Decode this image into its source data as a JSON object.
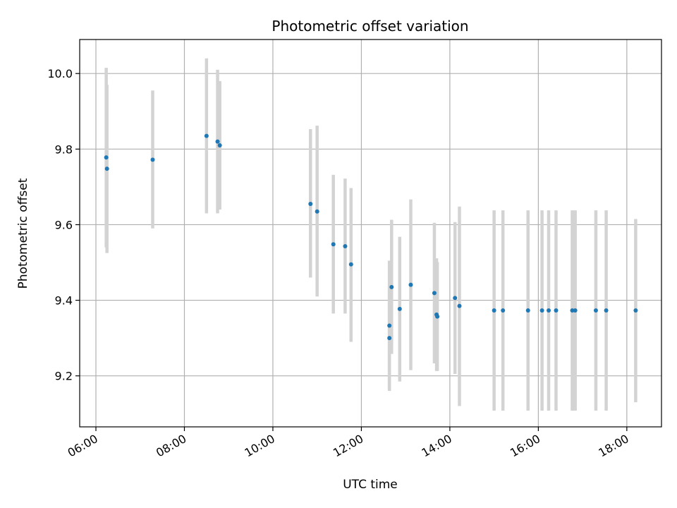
{
  "chart_data": {
    "type": "scatter",
    "title": "Photometric offset variation",
    "xlabel": "UTC time",
    "ylabel": "Photometric offset",
    "xlim": [
      "05:38",
      "18:47"
    ],
    "ylim": [
      9.065,
      10.09
    ],
    "x_ticks": [
      "06:00",
      "08:00",
      "10:00",
      "12:00",
      "14:00",
      "16:00",
      "18:00"
    ],
    "y_ticks": [
      "9.2",
      "9.4",
      "9.6",
      "9.8",
      "10.0"
    ],
    "grid": true,
    "marker_color": "#1f77b4",
    "errorbar_color": "#d3d3d3",
    "series": [
      {
        "points": [
          {
            "x": "06:14",
            "y": 9.778,
            "ylow": 9.54,
            "yhigh": 10.015
          },
          {
            "x": "06:15",
            "y": 9.748,
            "ylow": 9.525,
            "yhigh": 9.97
          },
          {
            "x": "07:17",
            "y": 9.772,
            "ylow": 9.59,
            "yhigh": 9.955
          },
          {
            "x": "08:30",
            "y": 9.835,
            "ylow": 9.63,
            "yhigh": 10.04
          },
          {
            "x": "08:45",
            "y": 9.82,
            "ylow": 9.63,
            "yhigh": 10.01
          },
          {
            "x": "08:48",
            "y": 9.81,
            "ylow": 9.64,
            "yhigh": 9.98
          },
          {
            "x": "10:51",
            "y": 9.655,
            "ylow": 9.46,
            "yhigh": 9.853
          },
          {
            "x": "11:00",
            "y": 9.635,
            "ylow": 9.41,
            "yhigh": 9.862
          },
          {
            "x": "11:22",
            "y": 9.548,
            "ylow": 9.365,
            "yhigh": 9.732
          },
          {
            "x": "11:38",
            "y": 9.543,
            "ylow": 9.365,
            "yhigh": 9.722
          },
          {
            "x": "11:46",
            "y": 9.495,
            "ylow": 9.29,
            "yhigh": 9.697
          },
          {
            "x": "12:38",
            "y": 9.333,
            "ylow": 9.165,
            "yhigh": 9.505
          },
          {
            "x": "12:38",
            "y": 9.3,
            "ylow": 9.16,
            "yhigh": 9.44
          },
          {
            "x": "12:41",
            "y": 9.435,
            "ylow": 9.258,
            "yhigh": 9.613
          },
          {
            "x": "12:52",
            "y": 9.377,
            "ylow": 9.185,
            "yhigh": 9.568
          },
          {
            "x": "13:07",
            "y": 9.441,
            "ylow": 9.215,
            "yhigh": 9.667
          },
          {
            "x": "13:39",
            "y": 9.419,
            "ylow": 9.233,
            "yhigh": 9.605
          },
          {
            "x": "13:42",
            "y": 9.362,
            "ylow": 9.213,
            "yhigh": 9.511
          },
          {
            "x": "13:43",
            "y": 9.357,
            "ylow": 9.213,
            "yhigh": 9.501
          },
          {
            "x": "14:07",
            "y": 9.406,
            "ylow": 9.205,
            "yhigh": 9.607
          },
          {
            "x": "14:13",
            "y": 9.385,
            "ylow": 9.12,
            "yhigh": 9.648
          },
          {
            "x": "15:00",
            "y": 9.373,
            "ylow": 9.108,
            "yhigh": 9.638
          },
          {
            "x": "15:12",
            "y": 9.373,
            "ylow": 9.108,
            "yhigh": 9.638
          },
          {
            "x": "15:46",
            "y": 9.373,
            "ylow": 9.108,
            "yhigh": 9.638
          },
          {
            "x": "16:05",
            "y": 9.373,
            "ylow": 9.108,
            "yhigh": 9.638
          },
          {
            "x": "16:14",
            "y": 9.373,
            "ylow": 9.108,
            "yhigh": 9.638
          },
          {
            "x": "16:24",
            "y": 9.373,
            "ylow": 9.108,
            "yhigh": 9.638
          },
          {
            "x": "16:46",
            "y": 9.373,
            "ylow": 9.108,
            "yhigh": 9.638
          },
          {
            "x": "16:50",
            "y": 9.373,
            "ylow": 9.108,
            "yhigh": 9.638
          },
          {
            "x": "17:18",
            "y": 9.373,
            "ylow": 9.108,
            "yhigh": 9.638
          },
          {
            "x": "17:32",
            "y": 9.373,
            "ylow": 9.108,
            "yhigh": 9.638
          },
          {
            "x": "18:12",
            "y": 9.373,
            "ylow": 9.13,
            "yhigh": 9.615
          }
        ]
      }
    ]
  }
}
